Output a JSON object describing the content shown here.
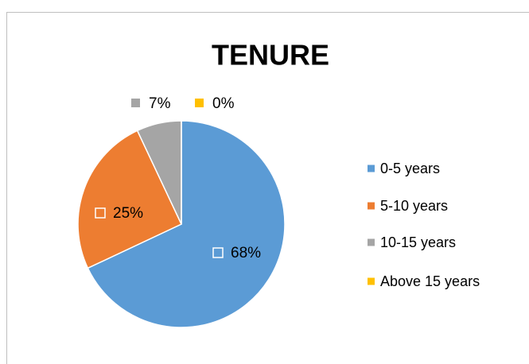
{
  "chart_data": {
    "type": "pie",
    "title": "TENURE",
    "categories": [
      "0-5 years",
      "5-10 years",
      "10-15 years",
      "Above 15 years"
    ],
    "values": [
      68,
      25,
      7,
      0
    ],
    "value_labels": [
      "68%",
      "25%",
      "7%",
      "0%"
    ],
    "colors": [
      "#5b9bd5",
      "#ed7d31",
      "#a5a5a5",
      "#ffc000"
    ],
    "legend": "right"
  }
}
